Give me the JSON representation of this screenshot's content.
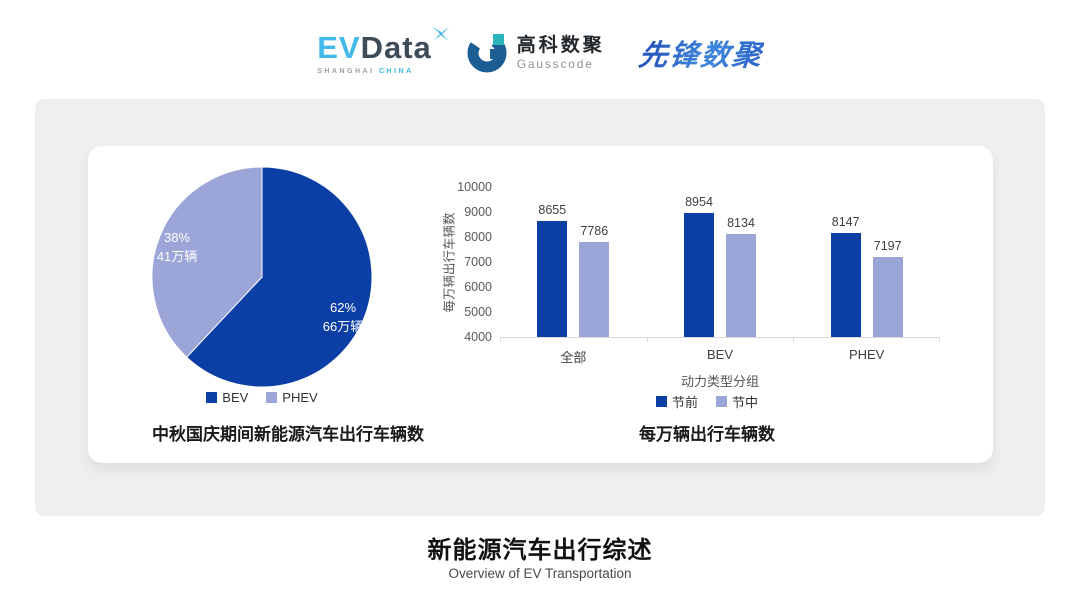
{
  "header": {
    "evdata": {
      "ev": "EV",
      "word": "Data",
      "sub_left": "SHANGHAI",
      "sub_right": "CHINA"
    },
    "gausscode": {
      "cn": "高科数聚",
      "en": "Gausscode"
    },
    "xianfeng": "先锋数聚"
  },
  "colors": {
    "series_dark_blue": "#0c3fa6",
    "series_light_blue": "#9ca5d8",
    "panel_gray": "#efeff1",
    "axis_line": "#d9d9d9"
  },
  "chart_data": [
    {
      "type": "pie",
      "title": "中秋国庆期间新能源汽车出行车辆数",
      "slices": [
        {
          "name": "BEV",
          "percent": 62,
          "percent_label": "62%",
          "value_label": "66万辆",
          "color": "#0c3fa6"
        },
        {
          "name": "PHEV",
          "percent": 38,
          "percent_label": "38%",
          "value_label": "41万辆",
          "color": "#9ca5d8"
        }
      ],
      "start_angle": "top",
      "direction": "clockwise",
      "legend_position": "bottom"
    },
    {
      "type": "bar",
      "title": "每万辆出行车辆数",
      "categories": [
        "全部",
        "BEV",
        "PHEV"
      ],
      "series": [
        {
          "name": "节前",
          "values": [
            8655,
            8954,
            8147
          ],
          "color": "#0c3fa6"
        },
        {
          "name": "节中",
          "values": [
            7786,
            8134,
            7197
          ],
          "color": "#9ca5d8"
        }
      ],
      "ylabel": "每万辆出行车辆数",
      "xlabel": "动力类型分组",
      "ylim": [
        4000,
        10000
      ],
      "y_ticks": [
        4000,
        5000,
        6000,
        7000,
        8000,
        9000,
        10000
      ],
      "grid": false,
      "legend_position": "bottom"
    }
  ],
  "footer": {
    "title": "新能源汽车出行综述",
    "subtitle": "Overview of EV Transportation"
  }
}
